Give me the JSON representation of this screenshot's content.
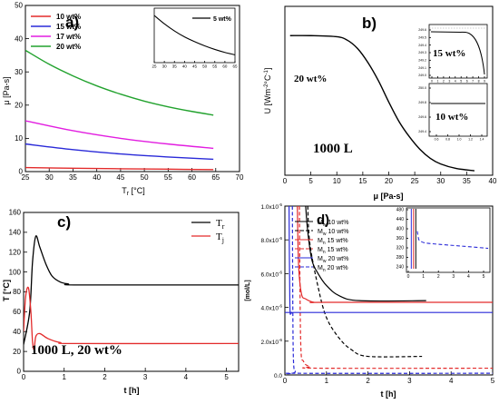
{
  "panels": {
    "a": {
      "label": "a)",
      "xlabel": "T",
      "xlabel_sub": "r",
      "xlabel_unit": " [°C]",
      "ylabel": "μ [Pa-s]",
      "xticks": [
        "25",
        "30",
        "35",
        "40",
        "45",
        "50",
        "55",
        "60",
        "65",
        "70"
      ],
      "yticks": [
        "0",
        "10",
        "20",
        "30",
        "40",
        "50"
      ],
      "inset_xticks": [
        "25",
        "30",
        "35",
        "40",
        "45",
        "50",
        "55",
        "60",
        "65"
      ]
    },
    "b": {
      "label": "b)",
      "ylabel": "U [Wm",
      "ylabel_sup": "-2",
      "ylabel_unit": "°C",
      "ylabel_unit_sup": "-1",
      "ylabel_close": "]",
      "xlabel": "μ [Pa-s]",
      "xticks": [
        "0",
        "5",
        "10",
        "15",
        "20",
        "25",
        "30",
        "35",
        "40"
      ],
      "curve_label": "20 wt%",
      "volume_label": "1000 L",
      "inset_top_label": "15 wt%",
      "inset_bottom_label": "10 wt%",
      "inset_top_yticks": [
        "249.6",
        "249.5",
        "249.4",
        "249.3",
        "249.2",
        "249.1",
        "249.0"
      ],
      "inset_top_xticks": [
        "0",
        "1",
        "2",
        "3",
        "4",
        "5",
        "6",
        "7",
        "8",
        "9"
      ],
      "inset_bottom_yticks": [
        "250.0",
        "249.8",
        "249.6",
        "249.4"
      ],
      "inset_bottom_xticks": [
        "0.6",
        "0.8",
        "1.0",
        "1.2",
        "1.4"
      ]
    },
    "c": {
      "label": "c)",
      "ylabel": "T [°C]",
      "xlabel": "t [h]",
      "xticks": [
        "0",
        "1",
        "2",
        "3",
        "4",
        "5"
      ],
      "yticks": [
        "0",
        "20",
        "40",
        "60",
        "80",
        "100",
        "120",
        "140",
        "160"
      ],
      "annotation": "1000 L,  20 wt%",
      "legend_sub": [
        "r",
        "j"
      ]
    },
    "d": {
      "label": "d)",
      "ylabel": "[mol/L]",
      "xlabel": "t [h]",
      "xticks": [
        "0",
        "1",
        "2",
        "3",
        "4",
        "5"
      ],
      "yticks": [
        "0.0",
        "2.0x10",
        "4.0x10",
        "6.0x10",
        "8.0x10",
        "1.0x10"
      ],
      "ytick_exponents": [
        "",
        "-6",
        "-6",
        "-6",
        "-6",
        "-5"
      ],
      "inset_xticks": [
        "0",
        "1",
        "2",
        "3",
        "4",
        "5"
      ],
      "inset_yticks": [
        "480",
        "440",
        "400",
        "360",
        "320",
        "280",
        "240"
      ],
      "legend_sub": [
        "w",
        "w",
        "n",
        "n",
        "w",
        "n"
      ]
    }
  },
  "chart_data": [
    {
      "panel": "a",
      "type": "line",
      "xlim": [
        25,
        70
      ],
      "ylim": [
        0,
        50
      ],
      "grid": false,
      "legend_position": "top-left",
      "series": [
        {
          "name": "10 wt%",
          "color": "#e32b2b",
          "x": [
            25,
            35,
            45,
            55,
            64.5
          ],
          "y": [
            1.2,
            1.0,
            0.85,
            0.72,
            0.6
          ]
        },
        {
          "name": "15 wt%",
          "color": "#2a2ad8",
          "x": [
            25,
            35,
            45,
            55,
            64.5
          ],
          "y": [
            8.3,
            6.6,
            5.3,
            4.4,
            3.7
          ]
        },
        {
          "name": "17 wt%",
          "color": "#e21ee0",
          "x": [
            25,
            35,
            45,
            55,
            64.5
          ],
          "y": [
            15.3,
            12.3,
            10.0,
            8.3,
            7.0
          ]
        },
        {
          "name": "20 wt%",
          "color": "#22a22e",
          "x": [
            25,
            30,
            35,
            40,
            45,
            50,
            55,
            60,
            64.5
          ],
          "y": [
            36.5,
            32.3,
            28.8,
            25.8,
            23.3,
            21.2,
            19.5,
            18.1,
            17.0
          ]
        }
      ],
      "inset": {
        "xlim": [
          25,
          65
        ],
        "series": [
          {
            "name": "5 wt%",
            "color": "#000000",
            "x": [
              25,
              30,
              35,
              40,
              45,
              50,
              55,
              60,
              65
            ],
            "y": [
              1.0,
              0.86,
              0.74,
              0.64,
              0.56,
              0.49,
              0.43,
              0.38,
              0.34
            ]
          }
        ]
      }
    },
    {
      "panel": "b",
      "type": "line",
      "xlim": [
        0,
        40
      ],
      "ylim": [
        0,
        300
      ],
      "grid": false,
      "series": [
        {
          "name": "20 wt%",
          "color": "#000000",
          "x": [
            1,
            5,
            10,
            12,
            14,
            16,
            18,
            20,
            22,
            24,
            26,
            28,
            30,
            33,
            36.5
          ],
          "y": [
            248,
            248,
            246,
            240,
            225,
            200,
            168,
            130,
            95,
            68,
            46,
            30,
            20,
            12,
            8
          ]
        }
      ]
    },
    {
      "panel": "c",
      "type": "line",
      "xlim": [
        0,
        5.3
      ],
      "ylim": [
        0,
        160
      ],
      "grid": false,
      "legend_position": "top-right",
      "series": [
        {
          "name": "T",
          "color": "#000000",
          "x": [
            0,
            0.15,
            0.22,
            0.3,
            0.4,
            0.55,
            0.7,
            0.9,
            1.1,
            1.4,
            5.3
          ],
          "y": [
            27,
            60,
            110,
            136,
            125,
            108,
            96,
            90,
            88,
            87,
            87
          ]
        },
        {
          "name": "T",
          "color": "#e32b2b",
          "x": [
            0,
            0.05,
            0.12,
            0.18,
            0.22,
            0.26,
            0.3,
            0.4,
            0.6,
            0.9,
            1.3,
            5.3
          ],
          "y": [
            40,
            75,
            84,
            60,
            30,
            22,
            35,
            38,
            33,
            29,
            28,
            28
          ]
        }
      ]
    },
    {
      "panel": "d",
      "type": "line",
      "xlim": [
        0,
        5
      ],
      "ylim": [
        0,
        1e-05
      ],
      "grid": false,
      "legend_position": "top-left",
      "series": [
        {
          "name": "M",
          "dash": "solid",
          "color": "#000000",
          "x": [
            0.5,
            0.55,
            0.65,
            0.8,
            1.0,
            1.3,
            1.8,
            3.4
          ],
          "y": [
            1e-05,
            8.5e-06,
            6.8e-06,
            6e-06,
            5.3e-06,
            4.7e-06,
            4.4e-06,
            4.4e-06
          ]
        },
        {
          "name": "M",
          "dash": "dashed",
          "color": "#000000",
          "x": [
            0.55,
            0.6,
            0.8,
            1.0,
            1.3,
            1.6,
            2.0,
            3.3
          ],
          "y": [
            1e-05,
            7.8e-06,
            5.2e-06,
            3.4e-06,
            2.2e-06,
            1.5e-06,
            1.1e-06,
            1.1e-06
          ]
        },
        {
          "name": "M",
          "dash": "solid",
          "color": "#e32b2b",
          "x": [
            0.3,
            0.33,
            0.4,
            0.5,
            0.7,
            1.0,
            5
          ],
          "y": [
            1e-05,
            6.5e-06,
            4.8e-06,
            4.5e-06,
            4.3e-06,
            4.3e-06,
            4.3e-06
          ]
        },
        {
          "name": "M",
          "dash": "dashed",
          "color": "#e32b2b",
          "x": [
            0.35,
            0.38,
            0.45,
            0.6,
            0.8,
            5
          ],
          "y": [
            1e-05,
            2e-06,
            8e-07,
            5e-07,
            4e-07,
            4e-07
          ]
        },
        {
          "name": "M",
          "dash": "solid",
          "color": "#2a2ad8",
          "x": [
            0.1,
            0.12,
            0.15,
            0.2,
            0.3,
            5
          ],
          "y": [
            1e-05,
            4.2e-06,
            3.7e-06,
            3.7e-06,
            3.7e-06,
            3.7e-06
          ]
        },
        {
          "name": "M",
          "dash": "dashed",
          "color": "#2a2ad8",
          "x": [
            0.18,
            0.2,
            0.25,
            0.3,
            5
          ],
          "y": [
            1e-05,
            1.5e-06,
            2e-07,
            1e-07,
            1e-07
          ]
        }
      ],
      "inset": {
        "xlim": [
          0,
          5.3
        ],
        "ylim": [
          240,
          480
        ],
        "series": [
          {
            "name": "M",
            "dash": "dashed",
            "color": "#2a2ad8",
            "x": [
              0.6,
              0.7,
              0.9,
              1.2,
              2,
              3,
              4,
              5.3
            ],
            "y": [
              390,
              355,
              345,
              340,
              335,
              330,
              325,
              318
            ]
          }
        ]
      }
    }
  ]
}
